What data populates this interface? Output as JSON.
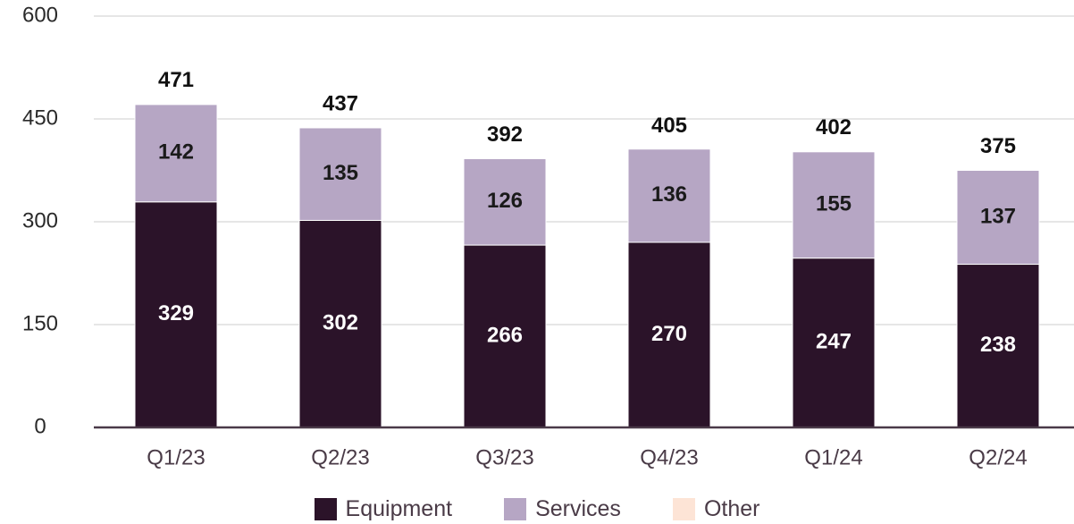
{
  "chart_data": {
    "type": "bar",
    "stacked": true,
    "categories": [
      "Q1/23",
      "Q2/23",
      "Q3/23",
      "Q4/23",
      "Q1/24",
      "Q2/24"
    ],
    "series": [
      {
        "name": "Equipment",
        "values": [
          329,
          302,
          266,
          270,
          247,
          238
        ],
        "color": "#2b1329"
      },
      {
        "name": "Services",
        "values": [
          142,
          135,
          126,
          136,
          155,
          137
        ],
        "color": "#b6a6c4"
      },
      {
        "name": "Other",
        "values": [
          0,
          0,
          0,
          0,
          0,
          0
        ],
        "color": "#fde4d6"
      }
    ],
    "totals": [
      471,
      437,
      392,
      405,
      402,
      375
    ],
    "y_ticks": [
      0,
      150,
      300,
      450,
      600
    ],
    "ylim": [
      0,
      600
    ],
    "grid": true,
    "legend_position": "bottom"
  }
}
